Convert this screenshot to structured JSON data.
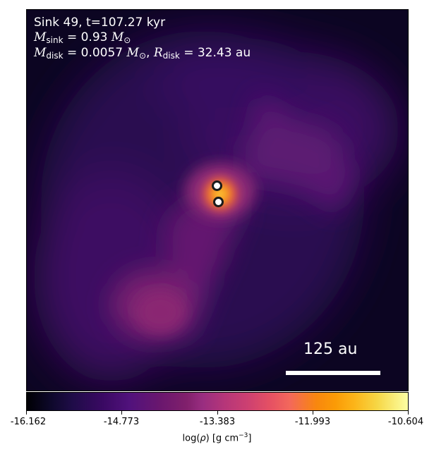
{
  "annotation": {
    "title": "Sink 49, t=107.27 kyr",
    "m_sink_symbol": "M",
    "m_sink_sub": "sink",
    "m_sink_value": "= 0.93",
    "m_sink_unit": "M",
    "m_sink_unit_sub": "⊙",
    "m_disk_symbol": "M",
    "m_disk_sub": "disk",
    "m_disk_value": "= 0.0057",
    "m_disk_unit": "M",
    "m_disk_unit_sub": "⊙",
    "separator": ", ",
    "r_disk_symbol": "R",
    "r_disk_sub": "disk",
    "r_disk_value": "= 32.43 au"
  },
  "scalebar": {
    "label": "125 au"
  },
  "colorbar": {
    "colormap": "inferno",
    "ticks": [
      "-16.162",
      "-14.773",
      "-13.383",
      "-11.993",
      "-10.604"
    ],
    "label_prefix": "log(",
    "label_rho": "ρ",
    "label_units": ") [g cm",
    "label_exp": "−3",
    "label_suffix": "]"
  },
  "sinks": [
    {
      "name": "sink-a"
    },
    {
      "name": "sink-b"
    }
  ],
  "colors": {
    "background_dark": "#0b0419",
    "filament_purple": "#5a1a6e",
    "core_orange": "#f5742a",
    "marker_fill": "#ffffff",
    "marker_edge": "#1b1b1b"
  }
}
